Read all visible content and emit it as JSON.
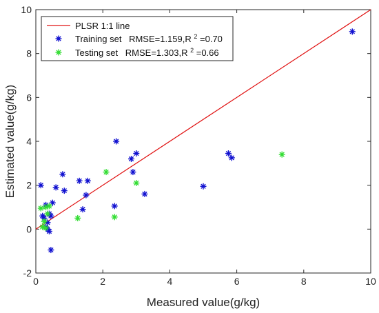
{
  "chart_data": {
    "type": "scatter",
    "xlabel": "Measured value(g/kg)",
    "ylabel": "Estimated value(g/kg)",
    "xlim": [
      0,
      10
    ],
    "ylim": [
      -2,
      10
    ],
    "xticks": [
      0,
      2,
      4,
      6,
      8,
      10
    ],
    "yticks": [
      -2,
      0,
      2,
      4,
      6,
      8,
      10
    ],
    "grid": false,
    "legend_position": "top-left",
    "line": {
      "name": "PLSR 1:1 line",
      "x": [
        0,
        10
      ],
      "y": [
        0,
        10
      ],
      "color": "#e01010"
    },
    "series": [
      {
        "name": "Training set",
        "stats_text": "RMSE=1.159,R",
        "stats_sup": "2",
        "stats_tail": "=0.70",
        "color": "#1010d0",
        "marker": "asterisk",
        "points": [
          [
            0.15,
            2.0
          ],
          [
            0.2,
            0.6
          ],
          [
            0.25,
            0.5
          ],
          [
            0.3,
            1.1
          ],
          [
            0.3,
            0.1
          ],
          [
            0.35,
            0.3
          ],
          [
            0.35,
            0.0
          ],
          [
            0.4,
            -0.1
          ],
          [
            0.4,
            0.7
          ],
          [
            0.45,
            0.6
          ],
          [
            0.5,
            1.2
          ],
          [
            0.45,
            -0.95
          ],
          [
            0.6,
            1.9
          ],
          [
            0.8,
            2.5
          ],
          [
            0.85,
            1.75
          ],
          [
            1.3,
            2.2
          ],
          [
            1.4,
            0.9
          ],
          [
            1.5,
            1.55
          ],
          [
            1.55,
            2.2
          ],
          [
            2.35,
            1.05
          ],
          [
            2.4,
            4.0
          ],
          [
            2.85,
            3.2
          ],
          [
            2.9,
            2.6
          ],
          [
            3.0,
            3.45
          ],
          [
            3.25,
            1.6
          ],
          [
            5.0,
            1.95
          ],
          [
            5.75,
            3.45
          ],
          [
            5.85,
            3.25
          ],
          [
            9.45,
            9.0
          ]
        ]
      },
      {
        "name": "Testing set",
        "stats_text": "RMSE=1.303,R",
        "stats_sup": "2",
        "stats_tail": "=0.66",
        "color": "#33dd33",
        "marker": "asterisk",
        "points": [
          [
            0.15,
            0.95
          ],
          [
            0.2,
            0.1
          ],
          [
            0.25,
            0.35
          ],
          [
            0.3,
            1.0
          ],
          [
            0.35,
            0.7
          ],
          [
            0.4,
            1.05
          ],
          [
            0.3,
            0.05
          ],
          [
            1.25,
            0.5
          ],
          [
            2.1,
            2.6
          ],
          [
            2.35,
            0.55
          ],
          [
            3.0,
            2.1
          ],
          [
            7.35,
            3.4
          ]
        ]
      }
    ]
  }
}
